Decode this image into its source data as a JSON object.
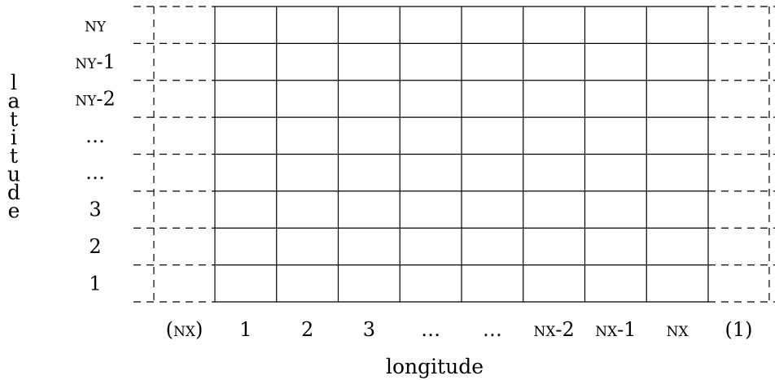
{
  "axes": {
    "x_title": "longitude",
    "y_title": "latitude"
  },
  "grid": {
    "interior_columns": 8,
    "rows": 8,
    "halo_columns": "left and right, dashed"
  },
  "row_labels": [
    "NY",
    "NY-1",
    "NY-2",
    "…",
    "…",
    "3",
    "2",
    "1"
  ],
  "column_labels": [
    "(NX)",
    "1",
    "2",
    "3",
    "…",
    "…",
    "NX-2",
    "NX-1",
    "NX",
    "(1)"
  ]
}
